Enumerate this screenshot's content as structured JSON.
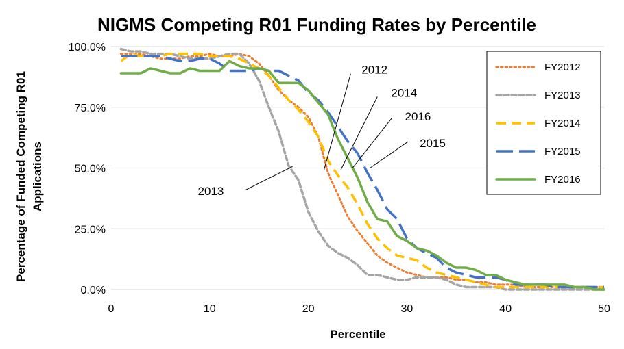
{
  "chart_data": {
    "type": "line",
    "title": "NIGMS Competing R01 Funding Rates by Percentile",
    "xlabel": "Percentile",
    "ylabel_line1": "Percentage of Funded Competing R01",
    "ylabel_line2": "Applications",
    "xlim": [
      0,
      50
    ],
    "ylim": [
      0,
      100
    ],
    "x_ticks": [
      0,
      10,
      20,
      30,
      40,
      50
    ],
    "y_ticks": [
      0,
      25,
      50,
      75,
      100
    ],
    "y_tick_labels": [
      "0.0%",
      "25.0%",
      "50.0%",
      "75.0%",
      "100.0%"
    ],
    "grid": "horizontal",
    "legend_position": "top-right",
    "x": [
      1,
      2,
      3,
      4,
      5,
      6,
      7,
      8,
      9,
      10,
      11,
      12,
      13,
      14,
      15,
      16,
      17,
      18,
      19,
      20,
      21,
      22,
      23,
      24,
      25,
      26,
      27,
      28,
      29,
      30,
      31,
      32,
      33,
      34,
      35,
      36,
      37,
      38,
      39,
      40,
      41,
      42,
      43,
      44,
      45,
      46,
      47,
      48,
      49,
      50
    ],
    "series": [
      {
        "name": "FY2012",
        "color": "#ED7D31",
        "dash": "dot",
        "values": [
          97,
          97,
          97,
          96,
          95,
          95,
          95,
          96,
          96,
          97,
          96,
          96,
          97,
          96,
          93,
          88,
          82,
          78,
          75,
          71,
          63,
          48,
          39,
          30,
          24,
          19,
          14,
          11,
          9,
          7,
          6,
          5,
          5,
          5,
          4,
          4,
          3,
          3,
          2,
          2,
          2,
          1,
          1,
          1,
          1,
          1,
          1,
          1,
          1,
          1
        ]
      },
      {
        "name": "FY2013",
        "color": "#A5A5A5",
        "dash": "dash-short",
        "values": [
          99,
          98,
          98,
          97,
          97,
          97,
          96,
          95,
          95,
          95,
          96,
          97,
          97,
          93,
          86,
          75,
          65,
          51,
          45,
          32,
          24,
          18,
          15,
          13,
          10,
          6,
          6,
          5,
          4,
          4,
          5,
          5,
          5,
          4,
          2,
          1,
          1,
          1,
          1,
          0,
          0,
          0,
          0,
          0,
          0,
          0,
          0,
          0,
          0,
          0
        ]
      },
      {
        "name": "FY2014",
        "color": "#FFC000",
        "dash": "dash",
        "values": [
          94,
          97,
          96,
          96,
          96,
          97,
          97,
          97,
          97,
          96,
          96,
          96,
          95,
          93,
          91,
          88,
          83,
          78,
          74,
          69,
          63,
          53,
          47,
          42,
          35,
          27,
          21,
          17,
          14,
          13,
          12,
          9,
          7,
          6,
          5,
          4,
          3,
          2,
          1,
          1,
          1,
          1,
          1,
          1,
          1,
          1,
          1,
          1,
          1,
          1
        ]
      },
      {
        "name": "FY2015",
        "color": "#4472C4",
        "dash": "dash-long",
        "values": [
          96,
          96,
          96,
          96,
          96,
          95,
          94,
          94,
          95,
          95,
          93,
          90,
          90,
          90,
          91,
          90,
          90,
          88,
          86,
          81,
          78,
          73,
          67,
          61,
          56,
          48,
          41,
          33,
          29,
          21,
          17,
          15,
          13,
          9,
          7,
          6,
          5,
          5,
          5,
          4,
          2,
          2,
          2,
          2,
          1,
          1,
          1,
          1,
          1,
          1
        ]
      },
      {
        "name": "FY2016",
        "color": "#70AD47",
        "dash": "solid",
        "values": [
          89,
          89,
          89,
          91,
          90,
          89,
          89,
          91,
          90,
          90,
          90,
          94,
          92,
          91,
          91,
          90,
          85,
          85,
          85,
          82,
          77,
          72,
          62,
          54,
          46,
          36,
          29,
          28,
          22,
          20,
          17,
          16,
          14,
          11,
          9,
          9,
          8,
          6,
          6,
          4,
          3,
          2,
          2,
          2,
          2,
          2,
          1,
          1,
          0,
          0
        ]
      }
    ],
    "annotations": [
      {
        "text": "2012",
        "label_x": 25.4,
        "label_y": 90.5,
        "line_from": [
          24.3,
          88.8
        ],
        "line_to": [
          21.6,
          49.3
        ]
      },
      {
        "text": "2014",
        "label_x": 28.4,
        "label_y": 81.0,
        "line_from": [
          27.0,
          79.3
        ],
        "line_to": [
          23.3,
          49.3
        ]
      },
      {
        "text": "2016",
        "label_x": 29.8,
        "label_y": 71.3,
        "line_from": [
          28.5,
          70.7
        ],
        "line_to": [
          24.5,
          50.1
        ]
      },
      {
        "text": "2015",
        "label_x": 31.3,
        "label_y": 60.3,
        "line_from": [
          30.1,
          60.8
        ],
        "line_to": [
          26.3,
          50.1
        ]
      },
      {
        "text": "2013",
        "label_x": 8.8,
        "label_y": 40.5,
        "line_from": [
          13.6,
          40.9
        ],
        "line_to": [
          18.4,
          50.6
        ]
      }
    ]
  }
}
